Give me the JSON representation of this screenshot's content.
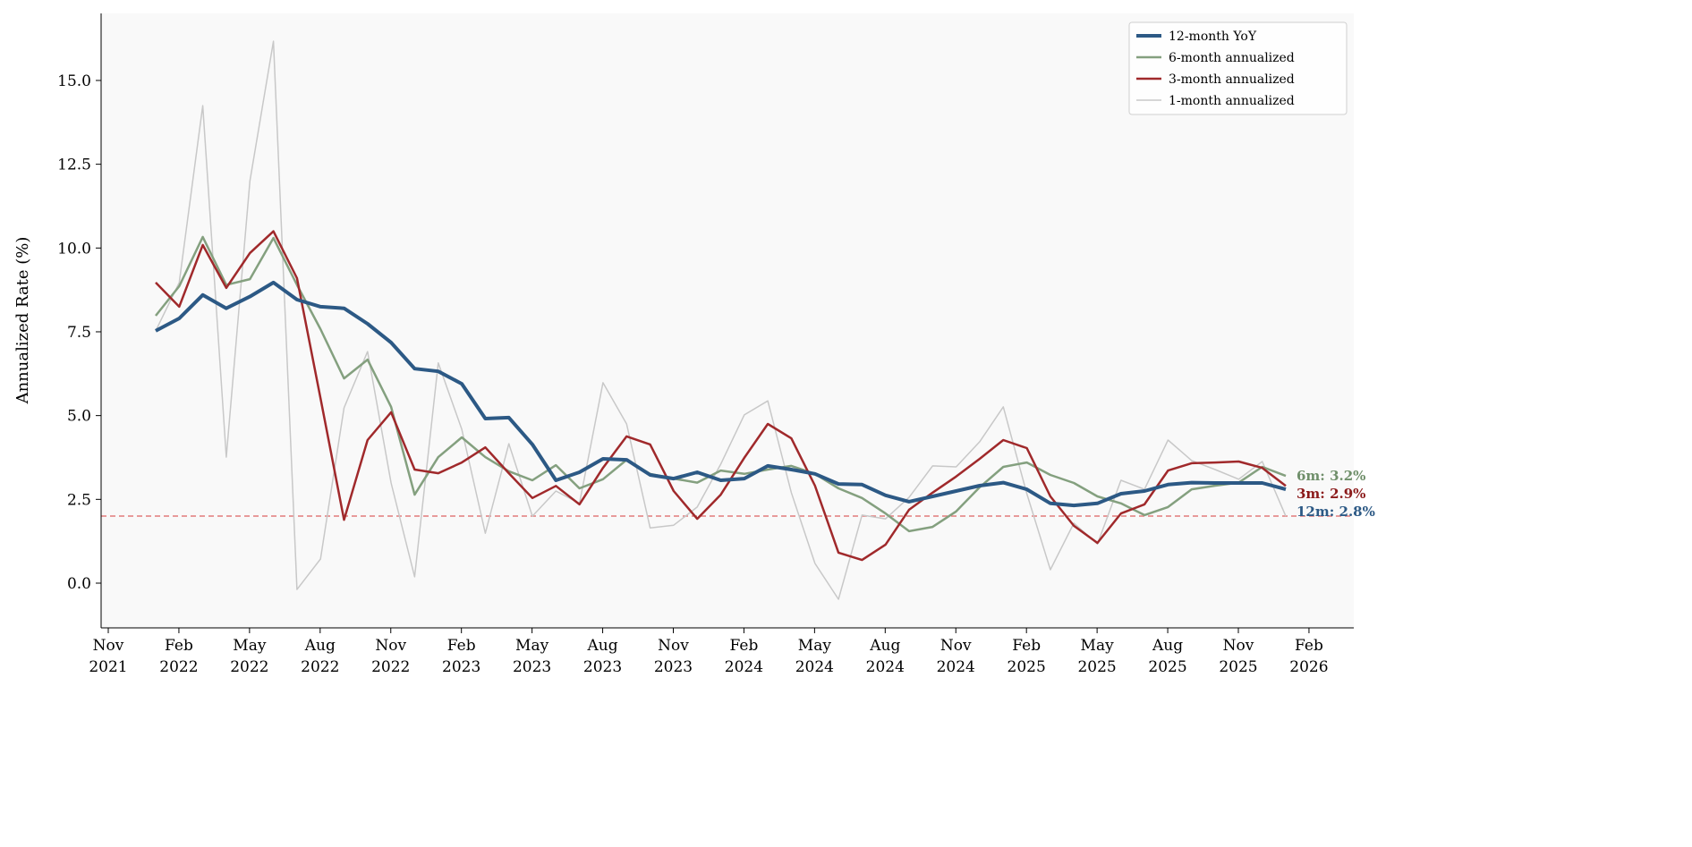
{
  "chart_data": {
    "type": "line",
    "title": "",
    "xlabel": "",
    "ylabel": "Annualized Rate (%)",
    "ylim": [
      -1.33,
      17.0
    ],
    "grid": false,
    "legend_position": "top-right",
    "x_start": "2022-01",
    "x_end": "2026-01",
    "frequency": "monthly",
    "x_ticks": [
      [
        "Nov",
        "2021"
      ],
      [
        "Feb",
        "2022"
      ],
      [
        "May",
        "2022"
      ],
      [
        "Aug",
        "2022"
      ],
      [
        "Nov",
        "2022"
      ],
      [
        "Feb",
        "2023"
      ],
      [
        "May",
        "2023"
      ],
      [
        "Aug",
        "2023"
      ],
      [
        "Nov",
        "2023"
      ],
      [
        "Feb",
        "2024"
      ],
      [
        "May",
        "2024"
      ],
      [
        "Aug",
        "2024"
      ],
      [
        "Nov",
        "2024"
      ],
      [
        "Feb",
        "2025"
      ],
      [
        "May",
        "2025"
      ],
      [
        "Aug",
        "2025"
      ],
      [
        "Nov",
        "2025"
      ],
      [
        "Feb",
        "2026"
      ]
    ],
    "y_ticks": [
      "0.0",
      "2.5",
      "5.0",
      "7.5",
      "10.0",
      "12.5",
      "15.0"
    ],
    "y_tick_values": [
      0,
      2.5,
      5,
      7.5,
      10,
      12.5,
      15
    ],
    "reference_line": {
      "value": 2.0,
      "style": "dashed",
      "color": "#e06666"
    },
    "series": [
      {
        "name": "1-month annualized",
        "color": "#c8c8c8",
        "values": [
          7.53,
          8.97,
          14.25,
          3.76,
          12.0,
          16.17,
          -0.19,
          0.72,
          5.23,
          6.91,
          2.99,
          0.19,
          6.57,
          4.59,
          1.49,
          4.16,
          2.0,
          2.75,
          2.38,
          5.98,
          4.75,
          1.65,
          1.73,
          2.27,
          3.55,
          5.02,
          5.44,
          2.7,
          0.59,
          -0.48,
          2.03,
          1.92,
          2.56,
          3.5,
          3.47,
          4.22,
          5.26,
          2.67,
          0.4,
          1.79,
          1.17,
          3.07,
          2.8,
          4.27,
          3.66,
          3.39,
          3.1,
          3.63,
          2.0
        ]
      },
      {
        "name": "6-month annualized",
        "color": "#84a07f",
        "values": [
          7.98,
          8.86,
          10.33,
          8.9,
          9.07,
          10.3,
          8.9,
          7.58,
          6.11,
          6.67,
          5.26,
          2.64,
          3.76,
          4.35,
          3.76,
          3.34,
          3.07,
          3.52,
          2.83,
          3.1,
          3.68,
          3.26,
          3.12,
          3.0,
          3.36,
          3.26,
          3.39,
          3.5,
          3.26,
          2.83,
          2.54,
          2.08,
          1.55,
          1.68,
          2.14,
          2.86,
          3.47,
          3.6,
          3.23,
          2.99,
          2.59,
          2.38,
          2.03,
          2.27,
          2.8,
          2.91,
          3.0,
          3.47,
          3.2
        ]
      },
      {
        "name": "3-month annualized",
        "color": "#a0292b",
        "values": [
          8.97,
          8.25,
          10.09,
          8.81,
          9.85,
          10.5,
          9.1,
          5.52,
          1.89,
          4.27,
          5.1,
          3.39,
          3.28,
          3.6,
          4.05,
          3.28,
          2.54,
          2.9,
          2.35,
          3.44,
          4.38,
          4.14,
          2.75,
          1.92,
          2.64,
          3.74,
          4.75,
          4.32,
          2.91,
          0.91,
          0.69,
          1.15,
          2.19,
          2.7,
          3.18,
          3.71,
          4.27,
          4.03,
          2.59,
          1.71,
          1.2,
          2.08,
          2.35,
          3.36,
          3.58,
          3.6,
          3.63,
          3.44,
          2.9
        ]
      },
      {
        "name": "12-month YoY",
        "color": "#2c5985",
        "values": [
          7.53,
          7.9,
          8.6,
          8.2,
          8.55,
          8.97,
          8.46,
          8.25,
          8.2,
          7.74,
          7.18,
          6.4,
          6.32,
          5.95,
          4.91,
          4.94,
          4.14,
          3.07,
          3.31,
          3.71,
          3.68,
          3.23,
          3.12,
          3.31,
          3.07,
          3.12,
          3.5,
          3.39,
          3.26,
          2.96,
          2.94,
          2.62,
          2.43,
          2.59,
          2.75,
          2.91,
          3.0,
          2.8,
          2.38,
          2.32,
          2.38,
          2.67,
          2.75,
          2.94,
          3.0,
          2.99,
          2.99,
          2.99,
          2.8
        ]
      }
    ],
    "legend": [
      "12-month YoY",
      "6-month annualized",
      "3-month annualized",
      "1-month annualized"
    ],
    "end_labels": [
      {
        "text": "6m: 3.2%",
        "color": "#6f8f6a",
        "value": 3.2
      },
      {
        "text": "3m: 2.9%",
        "color": "#8b1a1a",
        "value": 2.9
      },
      {
        "text": "12m: 2.8%",
        "color": "#2c5985",
        "value": 2.8
      }
    ]
  }
}
